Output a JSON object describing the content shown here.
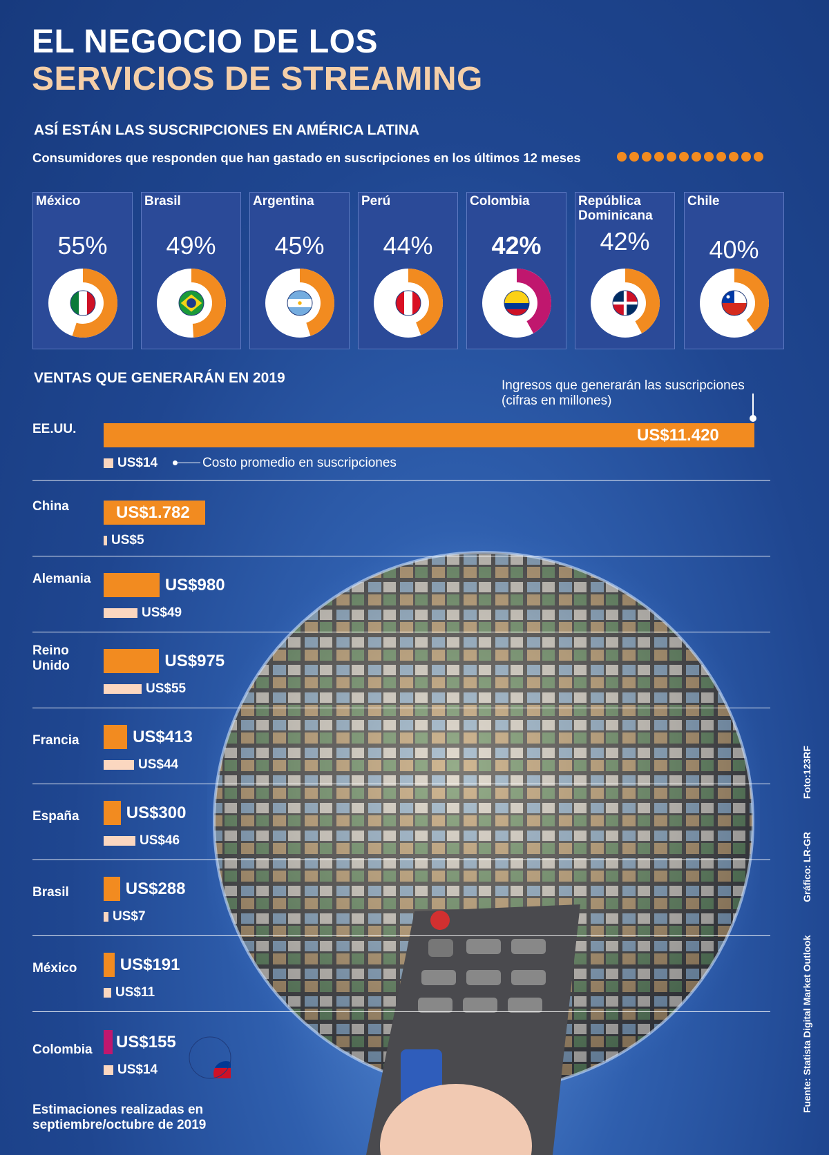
{
  "title": {
    "line1": "EL NEGOCIO DE LOS",
    "line2": "SERVICIOS DE STREAMING"
  },
  "section1": {
    "heading": "ASÍ ESTÁN LAS SUSCRIPCIONES EN AMÉRICA LATINA",
    "subtitle": "Consumidores que responden que han gastado en suscripciones en los últimos 12 meses"
  },
  "section2": {
    "heading": "VENTAS QUE GENERARÁN EN 2019",
    "revenue_label_1": "Ingresos que generarán las suscripciones",
    "revenue_label_2": "(cifras en millones)",
    "cost_annotation": "Costo promedio en suscripciones"
  },
  "colors": {
    "orange": "#f28b20",
    "magenta": "#c0176e",
    "peach": "#fbd7c0",
    "navy": "#1f4690"
  },
  "chart_data": [
    {
      "type": "pie",
      "categories": [
        "México",
        "Brasil",
        "Argentina",
        "Perú",
        "Colombia",
        "República Dominicana",
        "Chile"
      ],
      "labels": [
        "55%",
        "49%",
        "45%",
        "44%",
        "42%",
        "42%",
        "40%"
      ],
      "values": [
        55,
        49,
        45,
        44,
        42,
        42,
        40
      ],
      "flags": [
        "flag-mexico",
        "flag-brazil",
        "flag-argentina",
        "flag-peru",
        "flag-colombia",
        "flag-dominican-republic",
        "flag-chile"
      ],
      "title": "ASÍ ESTÁN LAS SUSCRIPCIONES EN AMÉRICA LATINA"
    },
    {
      "type": "bar",
      "orientation": "horizontal",
      "categories": [
        "EE.UU.",
        "China",
        "Alemania",
        "Reino Unido",
        "Francia",
        "España",
        "Brasil",
        "México",
        "Colombia"
      ],
      "series": [
        {
          "name": "Ingresos que generarán las suscripciones (cifras en millones)",
          "values": [
            11420,
            1782,
            980,
            975,
            413,
            300,
            288,
            191,
            155
          ],
          "labels": [
            "US$11.420",
            "US$1.782",
            "US$980",
            "US$975",
            "US$413",
            "US$300",
            "US$288",
            "US$191",
            "US$155"
          ]
        },
        {
          "name": "Costo promedio en suscripciones",
          "values": [
            14,
            5,
            49,
            55,
            44,
            46,
            7,
            11,
            14
          ],
          "labels": [
            "US$14",
            "US$5",
            "US$49",
            "US$55",
            "US$44",
            "US$46",
            "US$7",
            "US$11",
            "US$14"
          ]
        }
      ],
      "title": "VENTAS QUE GENERARÁN EN 2019"
    }
  ],
  "footnote": {
    "line1": "Estimaciones realizadas en",
    "line2": "septiembre/octubre de 2019"
  },
  "credits": {
    "source": "Fuente: Statista Digital Market Outlook",
    "graphic": "Gráfico: LR-GR",
    "photo": "Foto:123RF"
  }
}
